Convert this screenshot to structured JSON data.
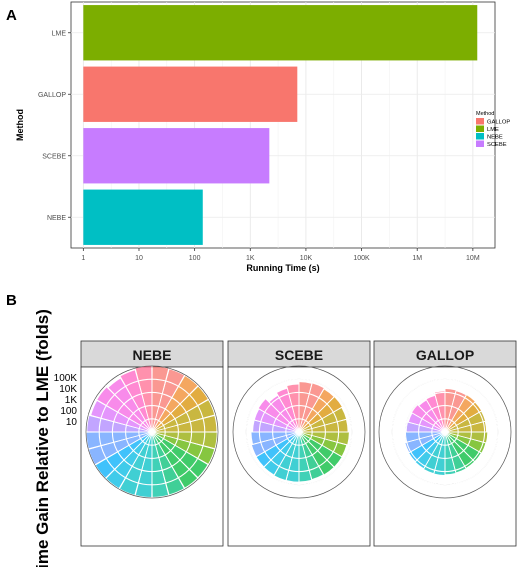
{
  "panel_a": {
    "label": "A",
    "chart_data": {
      "type": "bar",
      "orientation": "horizontal",
      "xscale": "log10",
      "categories": [
        "LME",
        "GALLOP",
        "SCEBE",
        "NEBE"
      ],
      "values": [
        12000000,
        7000,
        2200,
        140
      ],
      "colors": [
        "#7cae00",
        "#f8766d",
        "#c77cff",
        "#00bfc4"
      ],
      "xlabel": "Running Time (s)",
      "ylabel": "Method",
      "xlim": [
        0.6,
        25000000
      ],
      "xticks": [
        {
          "v": 1,
          "label": "1"
        },
        {
          "v": 10,
          "label": "10"
        },
        {
          "v": 100,
          "label": "100"
        },
        {
          "v": 1000,
          "label": "1K"
        },
        {
          "v": 10000,
          "label": "10K"
        },
        {
          "v": 100000,
          "label": "100K"
        },
        {
          "v": 1000000,
          "label": "1M"
        },
        {
          "v": 10000000,
          "label": "10M"
        }
      ],
      "grid": true,
      "legend": {
        "title": "Method",
        "position": "right",
        "items": [
          {
            "label": "GALLOP",
            "color": "#f8766d"
          },
          {
            "label": "LME",
            "color": "#7cae00"
          },
          {
            "label": "NEBE",
            "color": "#00bfc4"
          },
          {
            "label": "SCEBE",
            "color": "#c77cff"
          }
        ]
      }
    }
  },
  "panel_b": {
    "label": "B",
    "ylabel": "Time Gain Relative to LME (folds)",
    "ring_labels": [
      "100K",
      "10K",
      "1K",
      "100",
      "10"
    ],
    "ring_values": [
      100000,
      10000,
      1000,
      100,
      10
    ],
    "max_value": 100000,
    "chart_data": {
      "type": "polar-bar",
      "rscale": "log10",
      "facets": [
        {
          "title": "NEBE",
          "values": [
            90000,
            85000,
            82000,
            80000,
            78000,
            76000,
            80000,
            78000,
            75000,
            77000,
            80000,
            82000,
            84000,
            86000,
            85000,
            87000,
            90000,
            88000,
            80000,
            60000,
            65000,
            50000,
            70000,
            95000
          ]
        },
        {
          "title": "SCEBE",
          "values": [
            6000,
            6500,
            5500,
            5800,
            5000,
            4800,
            6000,
            5200,
            5500,
            5400,
            5000,
            5600,
            5800,
            6000,
            5500,
            5300,
            5000,
            4000,
            3000,
            3000,
            3500,
            1500,
            2500,
            4000
          ]
        },
        {
          "title": "GALLOP",
          "values": [
            1800,
            1600,
            1700,
            1500,
            1400,
            1300,
            1600,
            1500,
            1400,
            1400,
            1500,
            1600,
            1800,
            1700,
            1500,
            1400,
            1300,
            1000,
            800,
            700,
            800,
            600,
            700,
            1200
          ]
        }
      ]
    }
  }
}
